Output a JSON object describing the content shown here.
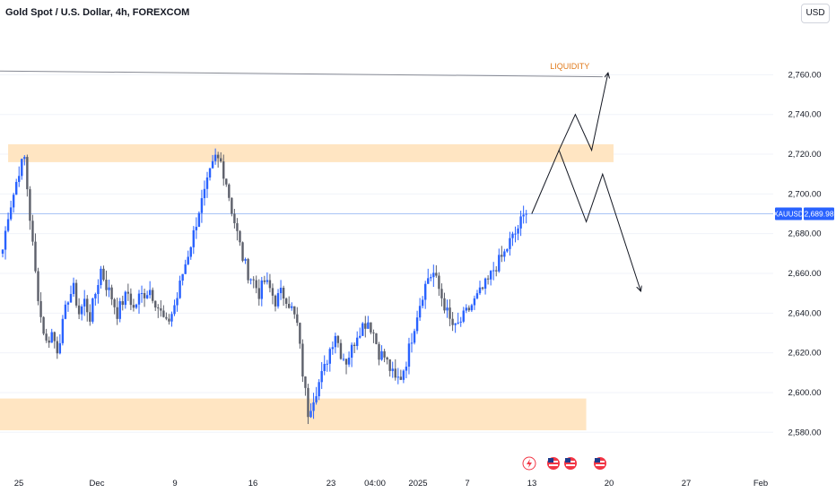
{
  "header": {
    "symbol_title": "Gold Spot / U.S. Dollar, 4h, FOREXCOM",
    "currency_button": "USD"
  },
  "chart_data": {
    "type": "candlestick",
    "symbol": "XAUUSD",
    "last_price": "2,689.98",
    "ylim": [
      2572,
      2785
    ],
    "y_ticks": [
      {
        "value": 2580,
        "label": "2,580.00"
      },
      {
        "value": 2600,
        "label": "2,600.00"
      },
      {
        "value": 2620,
        "label": "2,620.00"
      },
      {
        "value": 2640,
        "label": "2,640.00"
      },
      {
        "value": 2660,
        "label": "2,660.00"
      },
      {
        "value": 2680,
        "label": "2,680.00"
      },
      {
        "value": 2700,
        "label": "2,700.00"
      },
      {
        "value": 2720,
        "label": "2,720.00"
      },
      {
        "value": 2740,
        "label": "2,740.00"
      },
      {
        "value": 2760,
        "label": "2,760.00"
      }
    ],
    "x_ticks": [
      "25",
      "Dec",
      "9",
      "16",
      "23",
      "04:00",
      "2025",
      "7",
      "13",
      "20",
      "27",
      "Feb"
    ],
    "close_path": [
      [
        0,
        2672
      ],
      [
        2,
        2690
      ],
      [
        4,
        2700
      ],
      [
        6,
        2712
      ],
      [
        8,
        2718
      ],
      [
        10,
        2688
      ],
      [
        12,
        2660
      ],
      [
        14,
        2638
      ],
      [
        16,
        2625
      ],
      [
        18,
        2630
      ],
      [
        20,
        2622
      ],
      [
        22,
        2634
      ],
      [
        24,
        2648
      ],
      [
        26,
        2652
      ],
      [
        28,
        2640
      ],
      [
        30,
        2646
      ],
      [
        32,
        2638
      ],
      [
        34,
        2650
      ],
      [
        36,
        2662
      ],
      [
        38,
        2654
      ],
      [
        40,
        2648
      ],
      [
        42,
        2640
      ],
      [
        44,
        2646
      ],
      [
        46,
        2650
      ],
      [
        48,
        2642
      ],
      [
        50,
        2648
      ],
      [
        52,
        2650
      ],
      [
        54,
        2652
      ],
      [
        56,
        2646
      ],
      [
        58,
        2640
      ],
      [
        60,
        2634
      ],
      [
        62,
        2640
      ],
      [
        64,
        2648
      ],
      [
        66,
        2660
      ],
      [
        68,
        2670
      ],
      [
        70,
        2680
      ],
      [
        72,
        2692
      ],
      [
        74,
        2700
      ],
      [
        76,
        2710
      ],
      [
        78,
        2718
      ],
      [
        80,
        2716
      ],
      [
        82,
        2706
      ],
      [
        84,
        2692
      ],
      [
        86,
        2680
      ],
      [
        88,
        2668
      ],
      [
        90,
        2660
      ],
      [
        92,
        2656
      ],
      [
        94,
        2650
      ],
      [
        96,
        2656
      ],
      [
        98,
        2652
      ],
      [
        100,
        2646
      ],
      [
        102,
        2650
      ],
      [
        104,
        2648
      ],
      [
        106,
        2642
      ],
      [
        108,
        2634
      ],
      [
        110,
        2610
      ],
      [
        112,
        2590
      ],
      [
        114,
        2598
      ],
      [
        116,
        2605
      ],
      [
        118,
        2612
      ],
      [
        120,
        2622
      ],
      [
        122,
        2630
      ],
      [
        124,
        2620
      ],
      [
        126,
        2616
      ],
      [
        128,
        2622
      ],
      [
        130,
        2630
      ],
      [
        132,
        2634
      ],
      [
        134,
        2636
      ],
      [
        136,
        2630
      ],
      [
        138,
        2620
      ],
      [
        140,
        2618
      ],
      [
        142,
        2612
      ],
      [
        144,
        2606
      ],
      [
        146,
        2608
      ],
      [
        148,
        2616
      ],
      [
        150,
        2628
      ],
      [
        152,
        2640
      ],
      [
        154,
        2650
      ],
      [
        156,
        2658
      ],
      [
        158,
        2660
      ],
      [
        160,
        2652
      ],
      [
        162,
        2644
      ],
      [
        164,
        2636
      ],
      [
        166,
        2632
      ],
      [
        168,
        2636
      ],
      [
        170,
        2640
      ],
      [
        172,
        2644
      ],
      [
        174,
        2648
      ],
      [
        176,
        2652
      ],
      [
        178,
        2656
      ],
      [
        180,
        2662
      ],
      [
        182,
        2666
      ],
      [
        184,
        2670
      ],
      [
        186,
        2676
      ],
      [
        188,
        2680
      ],
      [
        190,
        2686
      ],
      [
        192,
        2690
      ]
    ],
    "zones": [
      {
        "name": "resistance-zone",
        "from_bar": 2,
        "to_bar": 224,
        "low": 2716,
        "high": 2725
      },
      {
        "name": "support-zone",
        "from_bar": -10,
        "to_bar": 214,
        "low": 2581,
        "high": 2597
      }
    ],
    "trendline": {
      "points": [
        [
          -10,
          2762
        ],
        [
          220,
          2759
        ]
      ]
    },
    "projection_up": [
      [
        194,
        2690
      ],
      [
        204,
        2722
      ],
      [
        210,
        2740
      ],
      [
        216,
        2722
      ],
      [
        222,
        2761
      ]
    ],
    "projection_down": [
      [
        204,
        2722
      ],
      [
        214,
        2686
      ],
      [
        220,
        2710
      ],
      [
        234,
        2651
      ]
    ],
    "annotations": [
      {
        "text": "LIQUIDITY",
        "bar": 208,
        "value": 2763,
        "color": "#e07a1b"
      }
    ],
    "price_line_value": 2689.98,
    "colors": {
      "up": "#2962ff",
      "down": "#5d606b",
      "zone": "#ffe5c2",
      "axis_text": "#131722",
      "grid": "#f0f3fa",
      "price_label_bg": "#2962ff",
      "price_line": "#a9c4f5",
      "trendline": "#868993",
      "projection": "#131722",
      "liquidity": "#e07a1b"
    },
    "event_icons": [
      "lightning-event-icon",
      "us-flag-event-icon",
      "us-flag-event-icon",
      "us-flag-event-icon"
    ]
  }
}
